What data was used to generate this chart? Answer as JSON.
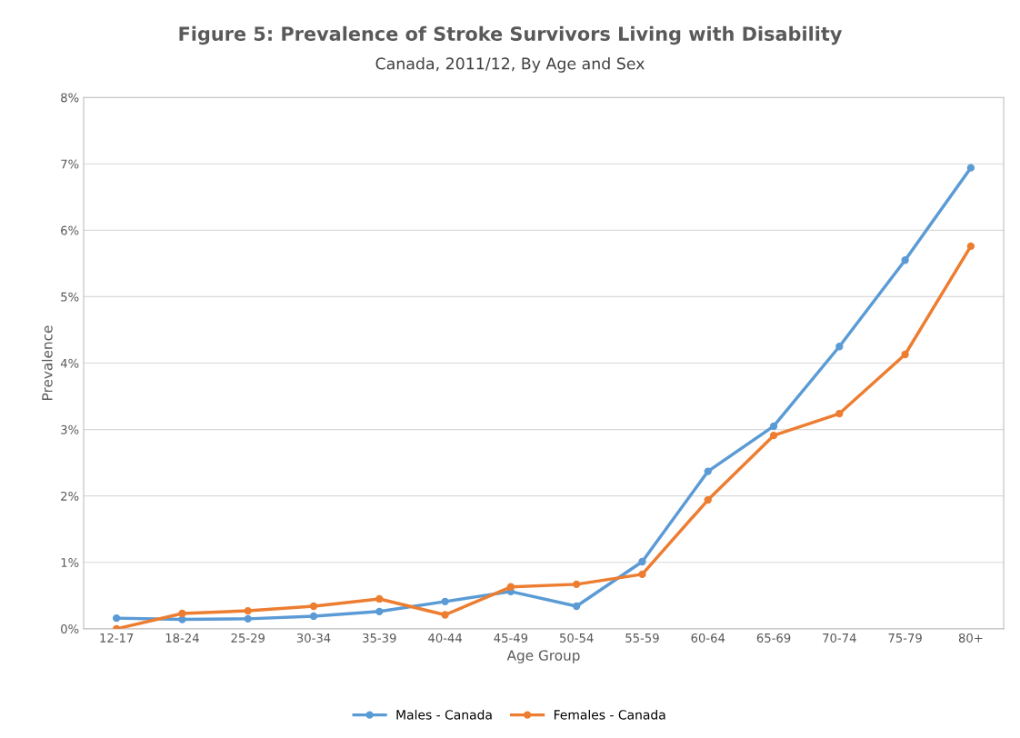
{
  "chart_data": {
    "type": "line",
    "title": "Figure 5: Prevalence of Stroke Survivors Living with Disability",
    "subtitle": "Canada, 2011/12, By Age and Sex",
    "xlabel": "Age Group",
    "ylabel": "Prevalence",
    "categories": [
      "12-17",
      "18-24",
      "25-29",
      "30-34",
      "35-39",
      "40-44",
      "45-49",
      "50-54",
      "55-59",
      "60-64",
      "65-69",
      "70-74",
      "75-79",
      "80+"
    ],
    "series": [
      {
        "name": "Males - Canada",
        "color": "#5b9bd5",
        "values": [
          0.16,
          0.14,
          0.15,
          0.19,
          0.26,
          0.41,
          0.56,
          0.34,
          1.01,
          2.37,
          3.05,
          4.25,
          5.55,
          6.94
        ]
      },
      {
        "name": "Females - Canada",
        "color": "#ed7d31",
        "values": [
          0.0,
          0.23,
          0.27,
          0.34,
          0.45,
          0.21,
          0.63,
          0.67,
          0.82,
          1.94,
          2.91,
          3.24,
          4.13,
          5.76
        ]
      }
    ],
    "ylim": [
      0,
      8
    ],
    "yticks": [
      {
        "value": 0,
        "label": "0%"
      },
      {
        "value": 1,
        "label": "1%"
      },
      {
        "value": 2,
        "label": "2%"
      },
      {
        "value": 3,
        "label": "3%"
      },
      {
        "value": 4,
        "label": "4%"
      },
      {
        "value": 5,
        "label": "5%"
      },
      {
        "value": 6,
        "label": "6%"
      },
      {
        "value": 7,
        "label": "7%"
      },
      {
        "value": 8,
        "label": "8%"
      }
    ],
    "grid": "y",
    "legend": "bottom",
    "marker": "circle",
    "line_style": "solid"
  }
}
